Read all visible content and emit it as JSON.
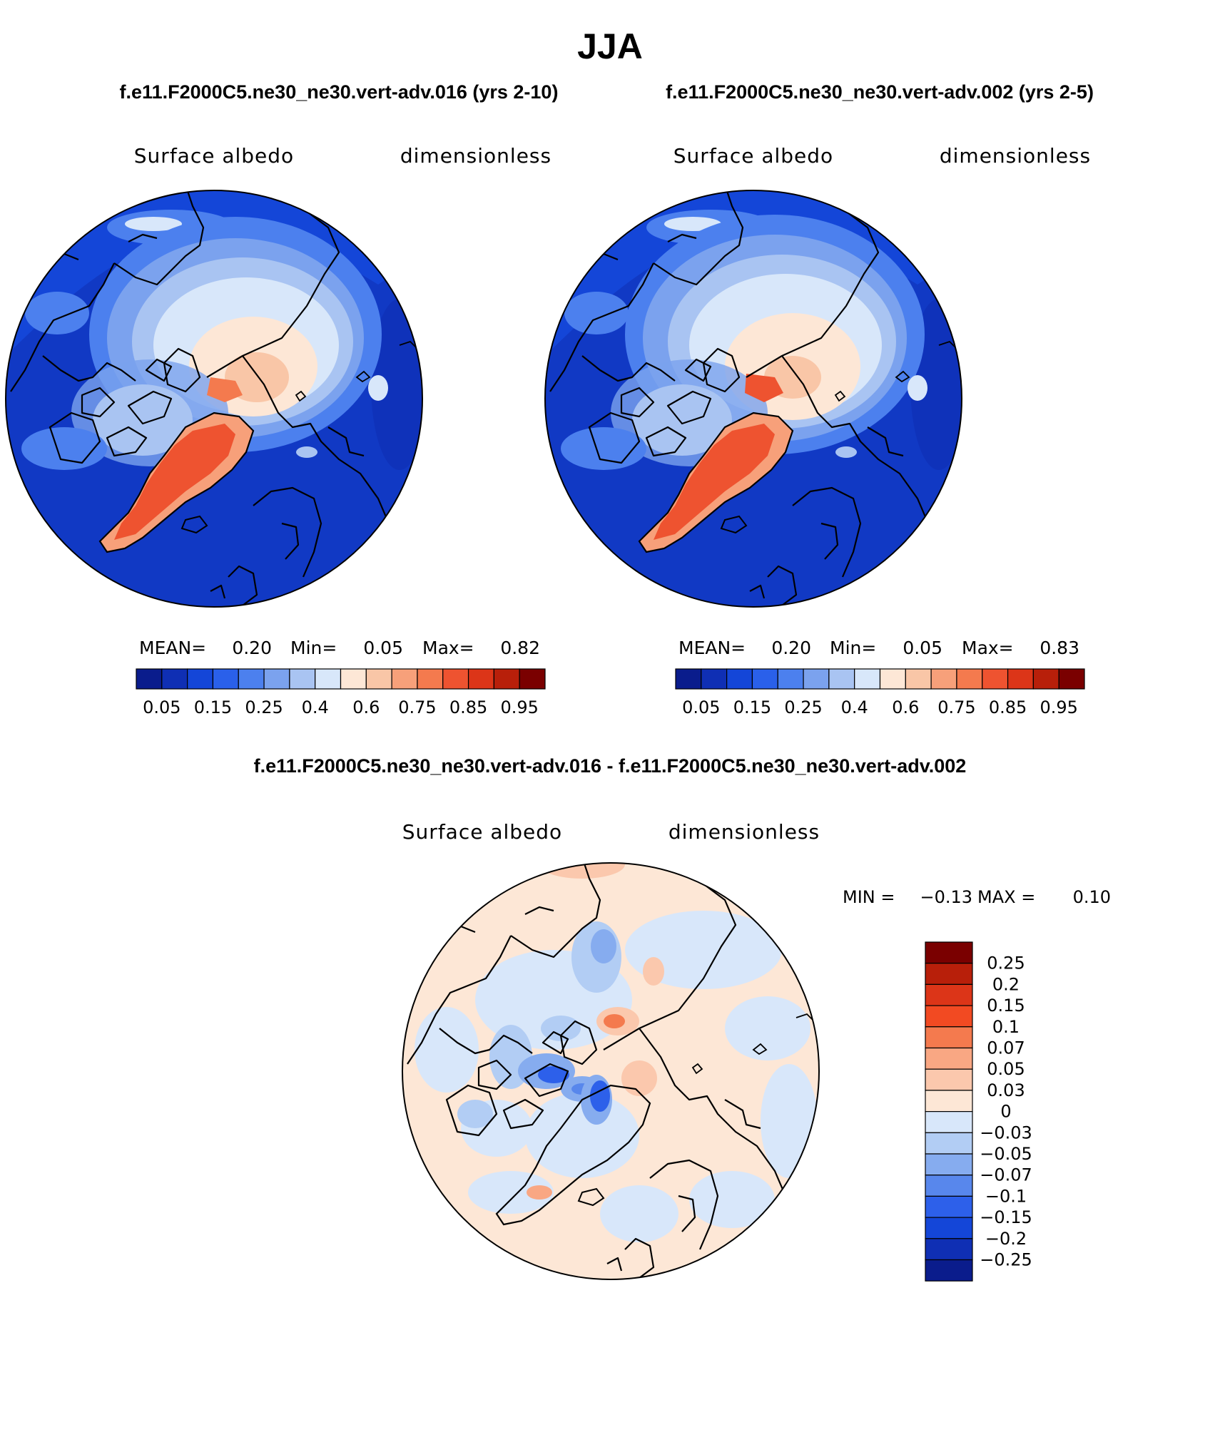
{
  "figure": {
    "season": "JJA",
    "panel_titles": [
      "f.e11.F2000C5.ne30_ne30.vert-adv.016 (yrs 2-10)",
      "f.e11.F2000C5.ne30_ne30.vert-adv.002 (yrs 2-5)"
    ],
    "diff_title": "f.e11.F2000C5.ne30_ne30.vert-adv.016 - f.e11.F2000C5.ne30_ne30.vert-adv.002"
  },
  "chart_data": [
    {
      "type": "heatmap",
      "projection": "north-polar-stereographic",
      "variable": "Surface albedo",
      "units": "dimensionless",
      "stats": {
        "mean_label": "MEAN=",
        "mean": "0.20",
        "min_label": "Min=",
        "min": "0.05",
        "max_label": "Max=",
        "max": "0.82"
      },
      "colorbar": {
        "orientation": "horizontal",
        "colors": [
          "#0a1c8c",
          "#0f2fb4",
          "#1446d8",
          "#2a60ea",
          "#4c80ee",
          "#7ba2ee",
          "#a9c4f2",
          "#d8e7fa",
          "#fde7d6",
          "#f9c6a7",
          "#f7a07a",
          "#f47a4e",
          "#ee5330",
          "#dc3518",
          "#b81f0a",
          "#7a0000"
        ],
        "tick_labels": [
          "0.05",
          "0.15",
          "0.25",
          "0.4",
          "0.6",
          "0.75",
          "0.85",
          "0.95"
        ]
      }
    },
    {
      "type": "heatmap",
      "projection": "north-polar-stereographic",
      "variable": "Surface albedo",
      "units": "dimensionless",
      "stats": {
        "mean_label": "MEAN=",
        "mean": "0.20",
        "min_label": "Min=",
        "min": "0.05",
        "max_label": "Max=",
        "max": "0.83"
      },
      "colorbar": {
        "orientation": "horizontal",
        "colors": [
          "#0a1c8c",
          "#0f2fb4",
          "#1446d8",
          "#2a60ea",
          "#4c80ee",
          "#7ba2ee",
          "#a9c4f2",
          "#d8e7fa",
          "#fde7d6",
          "#f9c6a7",
          "#f7a07a",
          "#f47a4e",
          "#ee5330",
          "#dc3518",
          "#b81f0a",
          "#7a0000"
        ],
        "tick_labels": [
          "0.05",
          "0.15",
          "0.25",
          "0.4",
          "0.6",
          "0.75",
          "0.85",
          "0.95"
        ]
      }
    },
    {
      "type": "heatmap",
      "projection": "north-polar-stereographic",
      "variable": "Surface albedo",
      "units": "dimensionless",
      "stats": {
        "min_label": "MIN =",
        "min": "−0.13",
        "max_label": "MAX =",
        "max": "0.10"
      },
      "colorbar": {
        "orientation": "vertical",
        "colors": [
          "#7a0000",
          "#b81f0a",
          "#dc3518",
          "#f24a22",
          "#f47a4e",
          "#f9a783",
          "#fbc8ad",
          "#fde7d6",
          "#d8e7fa",
          "#b2cdf4",
          "#86acef",
          "#5887ec",
          "#2d60ea",
          "#1446d8",
          "#0f2fb4",
          "#0a1c8c"
        ],
        "tick_labels": [
          "0.25",
          "0.2",
          "0.15",
          "0.1",
          "0.07",
          "0.05",
          "0.03",
          "0",
          "−0.03",
          "−0.05",
          "−0.07",
          "−0.1",
          "−0.15",
          "−0.2",
          "−0.25"
        ]
      }
    }
  ]
}
